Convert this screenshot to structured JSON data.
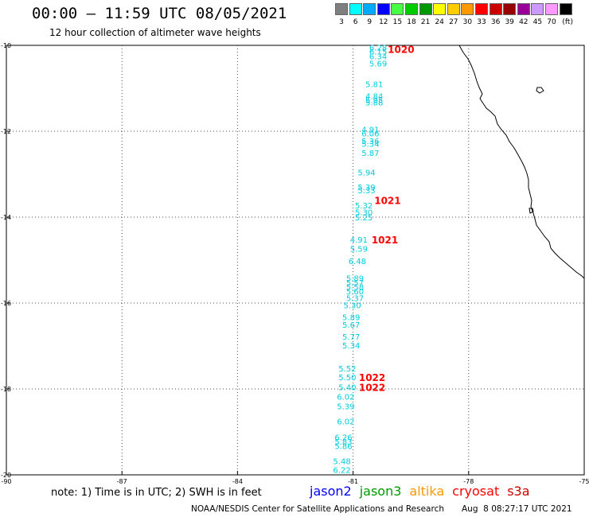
{
  "header": {
    "title": "00:00 – 11:59 UTC 08/05/2021",
    "subtitle": "12 hour collection of altimeter wave heights"
  },
  "color_scale": {
    "unit": "(ft)",
    "bins": [
      {
        "label": "3",
        "color": "#7f7f7f"
      },
      {
        "label": "6",
        "color": "#00ffff"
      },
      {
        "label": "9",
        "color": "#00aaff"
      },
      {
        "label": "12",
        "color": "#0000ff"
      },
      {
        "label": "15",
        "color": "#44ff44"
      },
      {
        "label": "18",
        "color": "#00cc00"
      },
      {
        "label": "21",
        "color": "#009900"
      },
      {
        "label": "24",
        "color": "#ffff00"
      },
      {
        "label": "27",
        "color": "#ffcc00"
      },
      {
        "label": "30",
        "color": "#ff9900"
      },
      {
        "label": "33",
        "color": "#ff0000"
      },
      {
        "label": "36",
        "color": "#cc0000"
      },
      {
        "label": "39",
        "color": "#990000"
      },
      {
        "label": "42",
        "color": "#990099"
      },
      {
        "label": "45",
        "color": "#cc99ff"
      },
      {
        "label": "70",
        "color": "#ff99ff"
      },
      {
        "label": "",
        "color": "#000000"
      }
    ]
  },
  "map": {
    "lon_range": [
      -90,
      -75
    ],
    "lat_range": [
      -20,
      -10
    ],
    "x_ticks": [
      "-90",
      "-87",
      "-84",
      "-81",
      "-78",
      "-75"
    ],
    "y_ticks": [
      "-10",
      "-12",
      "-14",
      "-16",
      "-18",
      "-20"
    ],
    "wave_color": "#00ccdd",
    "time_color": "#ff0000"
  },
  "observations": [
    {
      "lon": -80.58,
      "lat": -10.05,
      "value": "6.28"
    },
    {
      "lon": -80.58,
      "lat": -10.14,
      "value": "6.15"
    },
    {
      "lon": -80.58,
      "lat": -10.25,
      "value": "6.34"
    },
    {
      "lon": -80.58,
      "lat": -10.42,
      "value": "5.69"
    },
    {
      "lon": -80.68,
      "lat": -10.9,
      "value": "5.81"
    },
    {
      "lon": -80.68,
      "lat": -11.18,
      "value": "4.84"
    },
    {
      "lon": -80.68,
      "lat": -11.27,
      "value": "5.95"
    },
    {
      "lon": -80.68,
      "lat": -11.32,
      "value": "5.88"
    },
    {
      "lon": -80.78,
      "lat": -11.95,
      "value": "4.91"
    },
    {
      "lon": -80.78,
      "lat": -12.05,
      "value": "6.06"
    },
    {
      "lon": -80.78,
      "lat": -12.22,
      "value": "5.36"
    },
    {
      "lon": -80.78,
      "lat": -12.29,
      "value": "5.34"
    },
    {
      "lon": -80.78,
      "lat": -12.5,
      "value": "5.87"
    },
    {
      "lon": -80.88,
      "lat": -12.95,
      "value": "5.94"
    },
    {
      "lon": -80.88,
      "lat": -13.3,
      "value": "5.39"
    },
    {
      "lon": -80.88,
      "lat": -13.37,
      "value": "5.33"
    },
    {
      "lon": -80.95,
      "lat": -13.72,
      "value": "5.32"
    },
    {
      "lon": -80.95,
      "lat": -13.88,
      "value": "5.30"
    },
    {
      "lon": -80.95,
      "lat": -14.0,
      "value": "5.25"
    },
    {
      "lon": -81.08,
      "lat": -14.52,
      "value": "4.91"
    },
    {
      "lon": -81.08,
      "lat": -14.73,
      "value": "5.59"
    },
    {
      "lon": -81.12,
      "lat": -15.02,
      "value": "6.48"
    },
    {
      "lon": -81.18,
      "lat": -15.42,
      "value": "5.89"
    },
    {
      "lon": -81.18,
      "lat": -15.52,
      "value": "5.57"
    },
    {
      "lon": -81.18,
      "lat": -15.62,
      "value": "5.58"
    },
    {
      "lon": -81.18,
      "lat": -15.72,
      "value": "5.60"
    },
    {
      "lon": -81.18,
      "lat": -15.88,
      "value": "5.37"
    },
    {
      "lon": -81.25,
      "lat": -16.05,
      "value": "5.30"
    },
    {
      "lon": -81.28,
      "lat": -16.32,
      "value": "5.89"
    },
    {
      "lon": -81.28,
      "lat": -16.5,
      "value": "5.67"
    },
    {
      "lon": -81.28,
      "lat": -16.78,
      "value": "5.77"
    },
    {
      "lon": -81.28,
      "lat": -16.98,
      "value": "5.34"
    },
    {
      "lon": -81.38,
      "lat": -17.52,
      "value": "5.52"
    },
    {
      "lon": -81.38,
      "lat": -17.72,
      "value": "5.50"
    },
    {
      "lon": -81.38,
      "lat": -17.95,
      "value": "5.40"
    },
    {
      "lon": -81.42,
      "lat": -18.18,
      "value": "6.02"
    },
    {
      "lon": -81.42,
      "lat": -18.4,
      "value": "5.39"
    },
    {
      "lon": -81.42,
      "lat": -18.75,
      "value": "6.02"
    },
    {
      "lon": -81.48,
      "lat": -19.12,
      "value": "6.26"
    },
    {
      "lon": -81.48,
      "lat": -19.22,
      "value": "5.83"
    },
    {
      "lon": -81.48,
      "lat": -19.32,
      "value": "5.86"
    },
    {
      "lon": -81.52,
      "lat": -19.68,
      "value": "5.48"
    },
    {
      "lon": -81.52,
      "lat": -19.88,
      "value": "6.22"
    }
  ],
  "time_labels": [
    {
      "lon": -80.1,
      "lat": -10.08,
      "value": "1020"
    },
    {
      "lon": -80.45,
      "lat": -13.6,
      "value": "1021"
    },
    {
      "lon": -80.52,
      "lat": -14.52,
      "value": "1021"
    },
    {
      "lon": -80.85,
      "lat": -17.72,
      "value": "1022"
    },
    {
      "lon": -80.85,
      "lat": -17.95,
      "value": "1022"
    }
  ],
  "legend": {
    "note": "note: 1) Time is in UTC; 2) SWH is in feet",
    "satellites": [
      {
        "name": "jason2",
        "color": "#0000ff"
      },
      {
        "name": "jason3",
        "color": "#009900"
      },
      {
        "name": "altika",
        "color": "#ff9900"
      },
      {
        "name": "cryosat",
        "color": "#ff0000"
      },
      {
        "name": "s3a",
        "color": "#cc0000"
      }
    ]
  },
  "footer": {
    "credits": "NOAA/NESDIS Center for Satellite Applications and Research",
    "timestamp": "Aug  8 08:27:17 UTC 2021"
  }
}
